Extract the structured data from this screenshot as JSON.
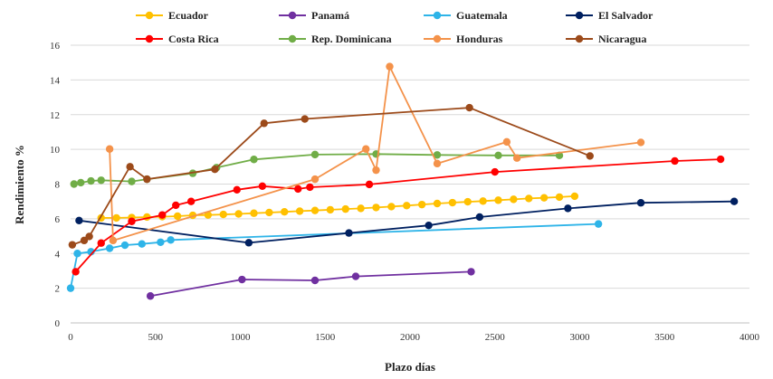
{
  "chart_data": {
    "type": "line",
    "xlabel": "Plazo días",
    "ylabel": "Rendimiento %",
    "xlim": [
      0,
      4000
    ],
    "ylim": [
      0,
      16
    ],
    "xticks": [
      0,
      500,
      1000,
      1500,
      2000,
      2500,
      3000,
      3500,
      4000
    ],
    "yticks": [
      0,
      2,
      4,
      6,
      8,
      10,
      12,
      14,
      16
    ],
    "grid": "horizontal",
    "legend": "top",
    "series": [
      {
        "name": "Ecuador",
        "color": "#FFC000",
        "points": [
          [
            180,
            6.05
          ],
          [
            270,
            6.05
          ],
          [
            360,
            6.07
          ],
          [
            450,
            6.1
          ],
          [
            540,
            6.12
          ],
          [
            630,
            6.15
          ],
          [
            720,
            6.2
          ],
          [
            810,
            6.22
          ],
          [
            900,
            6.25
          ],
          [
            990,
            6.28
          ],
          [
            1080,
            6.32
          ],
          [
            1170,
            6.36
          ],
          [
            1260,
            6.4
          ],
          [
            1350,
            6.44
          ],
          [
            1440,
            6.48
          ],
          [
            1530,
            6.52
          ],
          [
            1620,
            6.56
          ],
          [
            1710,
            6.6
          ],
          [
            1800,
            6.65
          ],
          [
            1890,
            6.7
          ],
          [
            1980,
            6.76
          ],
          [
            2070,
            6.82
          ],
          [
            2160,
            6.88
          ],
          [
            2250,
            6.93
          ],
          [
            2340,
            6.98
          ],
          [
            2430,
            7.02
          ],
          [
            2520,
            7.07
          ],
          [
            2610,
            7.12
          ],
          [
            2700,
            7.17
          ],
          [
            2790,
            7.21
          ],
          [
            2880,
            7.25
          ],
          [
            2970,
            7.3
          ]
        ]
      },
      {
        "name": "Panamá",
        "color": "#7030A0",
        "points": [
          [
            470,
            1.55
          ],
          [
            1010,
            2.5
          ],
          [
            1440,
            2.45
          ],
          [
            1680,
            2.68
          ],
          [
            2360,
            2.95
          ]
        ]
      },
      {
        "name": "Guatemala",
        "color": "#2EB4E8",
        "points": [
          [
            0,
            2.0
          ],
          [
            40,
            4.0
          ],
          [
            120,
            4.1
          ],
          [
            230,
            4.3
          ],
          [
            320,
            4.48
          ],
          [
            420,
            4.55
          ],
          [
            530,
            4.65
          ],
          [
            590,
            4.78
          ],
          [
            3110,
            5.7
          ]
        ]
      },
      {
        "name": "El Salvador",
        "color": "#002060",
        "points": [
          [
            50,
            5.9
          ],
          [
            1050,
            4.62
          ],
          [
            1640,
            5.18
          ],
          [
            2110,
            5.62
          ],
          [
            2410,
            6.1
          ],
          [
            2930,
            6.6
          ],
          [
            3360,
            6.92
          ],
          [
            3910,
            7.0
          ]
        ]
      },
      {
        "name": "Costa Rica",
        "color": "#FF0000",
        "points": [
          [
            30,
            2.95
          ],
          [
            180,
            4.6
          ],
          [
            360,
            5.85
          ],
          [
            540,
            6.22
          ],
          [
            620,
            6.78
          ],
          [
            710,
            7.0
          ],
          [
            980,
            7.67
          ],
          [
            1130,
            7.88
          ],
          [
            1340,
            7.72
          ],
          [
            1410,
            7.82
          ],
          [
            1760,
            7.98
          ],
          [
            2500,
            8.7
          ],
          [
            3560,
            9.33
          ],
          [
            3830,
            9.43
          ]
        ]
      },
      {
        "name": "Rep. Dominicana",
        "color": "#70AD47",
        "points": [
          [
            20,
            8.0
          ],
          [
            60,
            8.08
          ],
          [
            120,
            8.18
          ],
          [
            180,
            8.22
          ],
          [
            360,
            8.15
          ],
          [
            450,
            8.28
          ],
          [
            720,
            8.62
          ],
          [
            860,
            8.95
          ],
          [
            1080,
            9.42
          ],
          [
            1440,
            9.7
          ],
          [
            1800,
            9.73
          ],
          [
            2160,
            9.68
          ],
          [
            2520,
            9.65
          ],
          [
            2880,
            9.65
          ]
        ]
      },
      {
        "name": "Honduras",
        "color": "#F4924A",
        "points": [
          [
            230,
            10.02
          ],
          [
            250,
            4.75
          ],
          [
            1440,
            8.28
          ],
          [
            1740,
            10.02
          ],
          [
            1800,
            8.8
          ],
          [
            1880,
            14.77
          ],
          [
            2160,
            9.18
          ],
          [
            2570,
            10.43
          ],
          [
            2630,
            9.5
          ],
          [
            3360,
            10.4
          ]
        ]
      },
      {
        "name": "Nicaragua",
        "color": "#9C4A1A",
        "points": [
          [
            10,
            4.5
          ],
          [
            80,
            4.75
          ],
          [
            110,
            4.98
          ],
          [
            350,
            9.0
          ],
          [
            450,
            8.28
          ],
          [
            850,
            8.85
          ],
          [
            1140,
            11.5
          ],
          [
            1380,
            11.75
          ],
          [
            2350,
            12.4
          ],
          [
            3060,
            9.62
          ]
        ]
      }
    ]
  }
}
